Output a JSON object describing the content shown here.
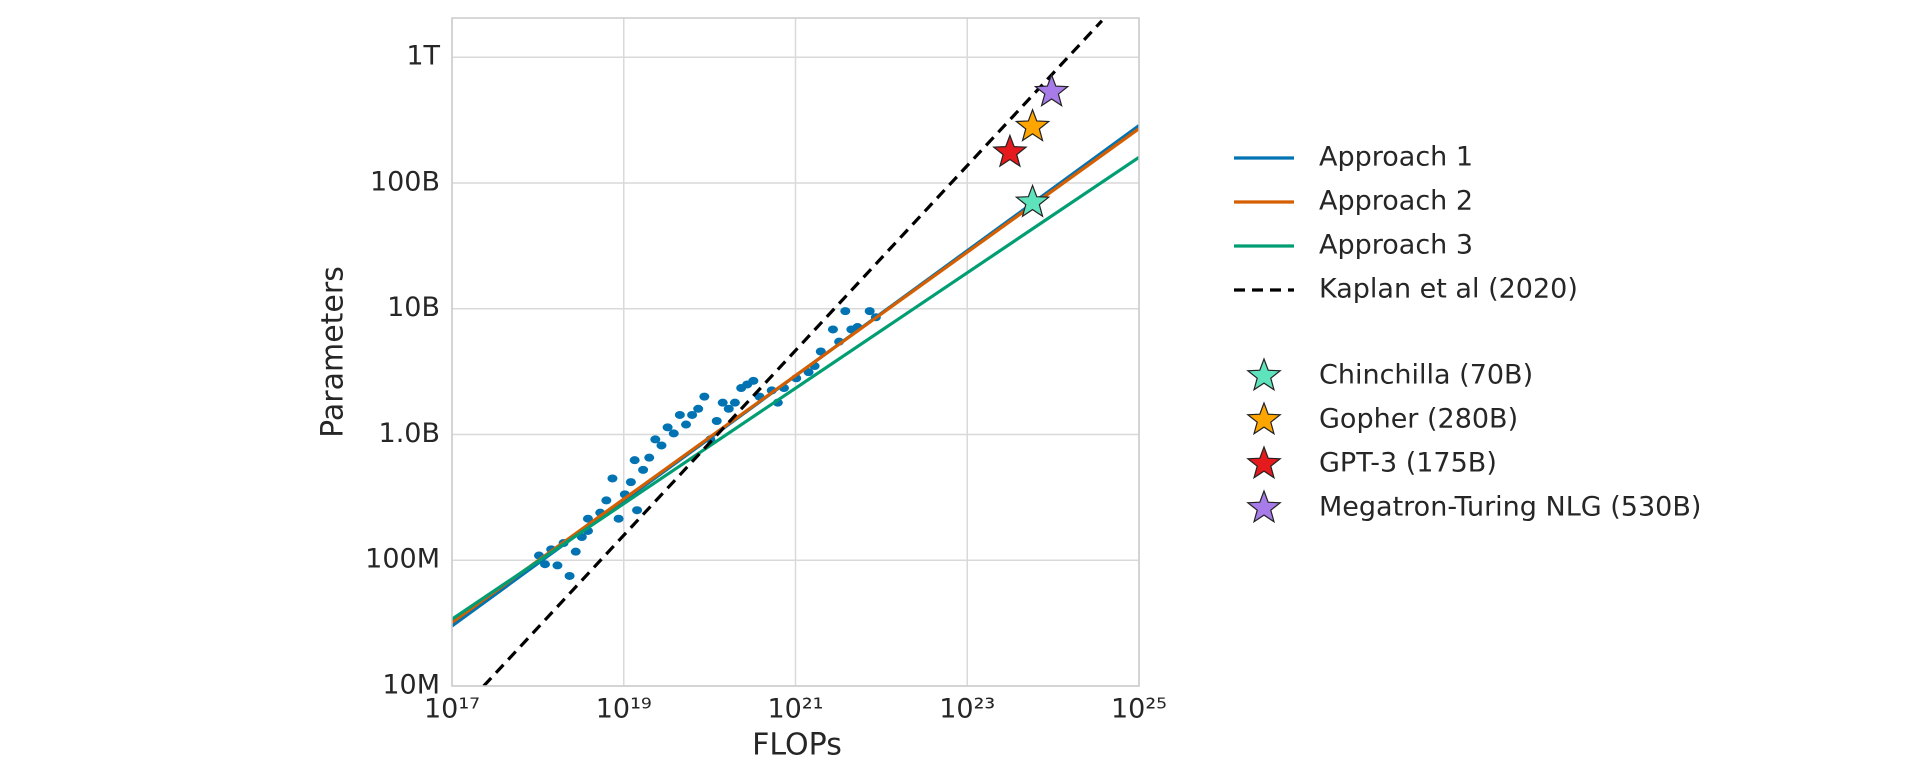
{
  "chart_data": {
    "type": "scatter",
    "xlabel": "FLOPs",
    "ylabel": "Parameters",
    "log_x": true,
    "log_y": true,
    "grid": true,
    "legend": "right",
    "xlim": [
      1e+17,
      1e+25
    ],
    "ylim": [
      10000000.0,
      2050000000000.0
    ],
    "xticks": [
      {
        "value": 1e+17,
        "label": "10¹⁷"
      },
      {
        "value": 1e+19,
        "label": "10¹⁹"
      },
      {
        "value": 1e+21,
        "label": "10²¹"
      },
      {
        "value": 1e+23,
        "label": "10²³"
      },
      {
        "value": 1e+25,
        "label": "10²⁵"
      }
    ],
    "yticks": [
      {
        "value": 10000000.0,
        "label": "10M"
      },
      {
        "value": 100000000.0,
        "label": "100M"
      },
      {
        "value": 1000000000.0,
        "label": "1.0B"
      },
      {
        "value": 10000000000.0,
        "label": "10B"
      },
      {
        "value": 100000000000.0,
        "label": "100B"
      },
      {
        "value": 1000000000000.0,
        "label": "1T"
      }
    ],
    "scatter": {
      "color": "#0173b2",
      "x": [
        1.03e+18,
        1.21e+18,
        1.43e+18,
        1.69e+18,
        1.99e+18,
        2.34e+18,
        2.76e+18,
        3.25e+18,
        3.83e+18,
        3.83e+18,
        5.32e+18,
        6.27e+18,
        7.39e+18,
        8.71e+18,
        1.03e+19,
        1.21e+19,
        1.34e+19,
        1.43e+19,
        1.68e+19,
        1.98e+19,
        2.33e+19,
        2.75e+19,
        3.24e+19,
        3.82e+19,
        4.5e+19,
        5.31e+19,
        6.25e+19,
        7.36e+19,
        8.68e+19,
        1.02e+20,
        1.21e+20,
        1.42e+20,
        1.67e+20,
        1.97e+20,
        2.33e+20,
        2.74e+20,
        3.23e+20,
        3.81e+20,
        5.29e+20,
        6.23e+20,
        7.34e+20,
        1.02e+21,
        1.42e+21,
        1.67e+21,
        1.97e+21,
        2.73e+21,
        3.22e+21,
        3.8e+21,
        4.47e+21,
        5.27e+21,
        7.31e+21,
        8.62e+21
      ],
      "values": [
        109000000.0,
        93000000.0,
        122000000.0,
        91000000.0,
        137000000.0,
        75000000.0,
        117000000.0,
        153000000.0,
        214000000.0,
        171000000.0,
        239000000.0,
        299000000.0,
        447000000.0,
        214000000.0,
        334000000.0,
        418000000.0,
        625000000.0,
        250000000.0,
        523000000.0,
        654000000.0,
        914000000.0,
        818000000.0,
        1140000000.0,
        1020000000.0,
        1430000000.0,
        1200000000.0,
        1430000000.0,
        1600000000.0,
        2000000000.0,
        914000000.0,
        1280000000.0,
        1790000000.0,
        1600000000.0,
        1790000000.0,
        2340000000.0,
        2500000000.0,
        2670000000.0,
        2000000000.0,
        2240000000.0,
        1790000000.0,
        2340000000.0,
        2800000000.0,
        3130000000.0,
        3500000000.0,
        4570000000.0,
        6840000000.0,
        5470000000.0,
        9570000000.0,
        6840000000.0,
        7150000000.0,
        9570000000.0,
        8550000000.0
      ]
    },
    "series": [
      {
        "name": "Approach 1",
        "color": "#0173b2",
        "x": [
          1e+17,
          1e+25
        ],
        "values": [
          30000000.0,
          286000000000.0
        ]
      },
      {
        "name": "Approach 2",
        "color": "#d55e00",
        "x": [
          1e+17,
          1e+25
        ],
        "values": [
          32000000.0,
          270000000000.0
        ]
      },
      {
        "name": "Approach 3",
        "color": "#029e73",
        "x": [
          1e+17,
          1e+25
        ],
        "values": [
          34000000.0,
          160000000000.0
        ]
      },
      {
        "name": "Kaplan et al (2020)",
        "color": "#000000",
        "dashed": true,
        "x": [
          2.34e+17,
          3.7e+24
        ],
        "values": [
          10000000.0,
          1950000000000.0
        ]
      }
    ],
    "points": [
      {
        "name": "Chinchilla (70B)",
        "color": "#5fe3bd",
        "x": 5.76e+23,
        "value": 70000000000.0
      },
      {
        "name": "Gopher (280B)",
        "color": "#ffa500",
        "x": 5.76e+23,
        "value": 280000000000.0
      },
      {
        "name": "GPT-3 (175B)",
        "color": "#e41a1c",
        "x": 3.14e+23,
        "value": 175000000000.0
      },
      {
        "name": "Megatron-Turing NLG (530B)",
        "color": "#a87ce8",
        "x": 9.6e+23,
        "value": 530000000000.0
      }
    ]
  }
}
